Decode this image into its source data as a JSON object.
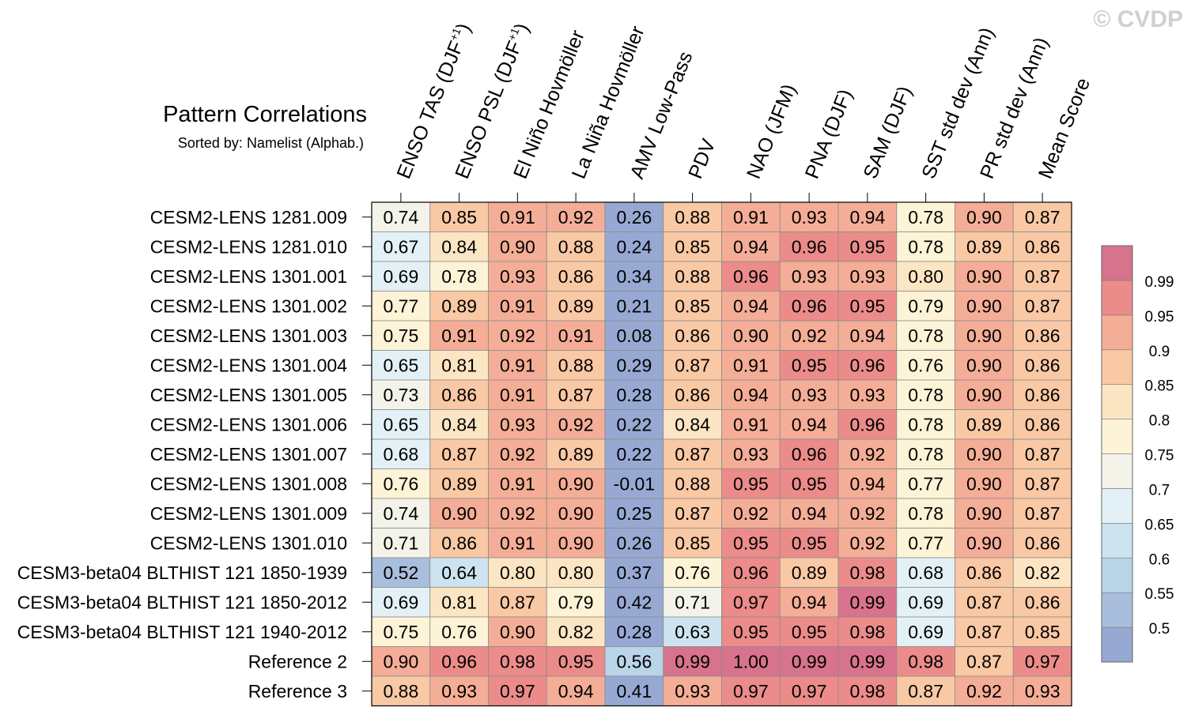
{
  "watermark": "© CVDP",
  "chart_data": {
    "type": "heatmap",
    "title": "Pattern Correlations",
    "subtitle": "Sorted by: Namelist (Alphab.)",
    "columns": [
      {
        "main": "ENSO TAS (DJF",
        "sup": "+1",
        "tail": ")"
      },
      {
        "main": "ENSO PSL (DJF",
        "sup": "+1",
        "tail": ")"
      },
      {
        "main": "El Niño Hovmöller",
        "sup": "",
        "tail": ""
      },
      {
        "main": "La Niña Hovmöller",
        "sup": "",
        "tail": ""
      },
      {
        "main": "AMV Low-Pass",
        "sup": "",
        "tail": ""
      },
      {
        "main": "PDV",
        "sup": "",
        "tail": ""
      },
      {
        "main": "NAO (JFM)",
        "sup": "",
        "tail": ""
      },
      {
        "main": "PNA (DJF)",
        "sup": "",
        "tail": ""
      },
      {
        "main": "SAM (DJF)",
        "sup": "",
        "tail": ""
      },
      {
        "main": "SST std dev (Ann)",
        "sup": "",
        "tail": ""
      },
      {
        "main": "PR std dev (Ann)",
        "sup": "",
        "tail": ""
      },
      {
        "main": "Mean Score",
        "sup": "",
        "tail": ""
      }
    ],
    "rows": [
      "CESM2-LENS 1281.009",
      "CESM2-LENS 1281.010",
      "CESM2-LENS 1301.001",
      "CESM2-LENS 1301.002",
      "CESM2-LENS 1301.003",
      "CESM2-LENS 1301.004",
      "CESM2-LENS 1301.005",
      "CESM2-LENS 1301.006",
      "CESM2-LENS 1301.007",
      "CESM2-LENS 1301.008",
      "CESM2-LENS 1301.009",
      "CESM2-LENS 1301.010",
      "CESM3-beta04 BLTHIST 121 1850-1939",
      "CESM3-beta04 BLTHIST 121 1850-2012",
      "CESM3-beta04 BLTHIST 121 1940-2012",
      "Reference 2",
      "Reference 3"
    ],
    "values": [
      [
        "0.74",
        "0.85",
        "0.91",
        "0.92",
        "0.26",
        "0.88",
        "0.91",
        "0.93",
        "0.94",
        "0.78",
        "0.90",
        "0.87"
      ],
      [
        "0.67",
        "0.84",
        "0.90",
        "0.88",
        "0.24",
        "0.85",
        "0.94",
        "0.96",
        "0.95",
        "0.78",
        "0.89",
        "0.86"
      ],
      [
        "0.69",
        "0.78",
        "0.93",
        "0.86",
        "0.34",
        "0.88",
        "0.96",
        "0.93",
        "0.93",
        "0.80",
        "0.90",
        "0.87"
      ],
      [
        "0.77",
        "0.89",
        "0.91",
        "0.89",
        "0.21",
        "0.85",
        "0.94",
        "0.96",
        "0.95",
        "0.79",
        "0.90",
        "0.87"
      ],
      [
        "0.75",
        "0.91",
        "0.92",
        "0.91",
        "0.08",
        "0.86",
        "0.90",
        "0.92",
        "0.94",
        "0.78",
        "0.90",
        "0.86"
      ],
      [
        "0.65",
        "0.81",
        "0.91",
        "0.88",
        "0.29",
        "0.87",
        "0.91",
        "0.95",
        "0.96",
        "0.76",
        "0.90",
        "0.86"
      ],
      [
        "0.73",
        "0.86",
        "0.91",
        "0.87",
        "0.28",
        "0.86",
        "0.94",
        "0.93",
        "0.93",
        "0.78",
        "0.90",
        "0.86"
      ],
      [
        "0.65",
        "0.84",
        "0.93",
        "0.92",
        "0.22",
        "0.84",
        "0.91",
        "0.94",
        "0.96",
        "0.78",
        "0.89",
        "0.86"
      ],
      [
        "0.68",
        "0.87",
        "0.92",
        "0.89",
        "0.22",
        "0.87",
        "0.93",
        "0.96",
        "0.92",
        "0.78",
        "0.90",
        "0.87"
      ],
      [
        "0.76",
        "0.89",
        "0.91",
        "0.90",
        "-0.01",
        "0.88",
        "0.95",
        "0.95",
        "0.94",
        "0.77",
        "0.90",
        "0.87"
      ],
      [
        "0.74",
        "0.90",
        "0.92",
        "0.90",
        "0.25",
        "0.87",
        "0.92",
        "0.94",
        "0.92",
        "0.78",
        "0.90",
        "0.87"
      ],
      [
        "0.71",
        "0.86",
        "0.91",
        "0.90",
        "0.26",
        "0.85",
        "0.95",
        "0.95",
        "0.92",
        "0.77",
        "0.90",
        "0.86"
      ],
      [
        "0.52",
        "0.64",
        "0.80",
        "0.80",
        "0.37",
        "0.76",
        "0.96",
        "0.89",
        "0.98",
        "0.68",
        "0.86",
        "0.82"
      ],
      [
        "0.69",
        "0.81",
        "0.87",
        "0.79",
        "0.42",
        "0.71",
        "0.97",
        "0.94",
        "0.99",
        "0.69",
        "0.87",
        "0.86"
      ],
      [
        "0.75",
        "0.76",
        "0.90",
        "0.82",
        "0.28",
        "0.63",
        "0.95",
        "0.95",
        "0.98",
        "0.69",
        "0.87",
        "0.85"
      ],
      [
        "0.90",
        "0.96",
        "0.98",
        "0.95",
        "0.56",
        "0.99",
        "1.00",
        "0.99",
        "0.99",
        "0.98",
        "0.87",
        "0.97"
      ],
      [
        "0.88",
        "0.93",
        "0.97",
        "0.94",
        "0.41",
        "0.93",
        "0.97",
        "0.97",
        "0.98",
        "0.87",
        "0.92",
        "0.93"
      ]
    ],
    "colorbar": {
      "levels": [
        0.5,
        0.55,
        0.6,
        0.65,
        0.7,
        0.75,
        0.8,
        0.85,
        0.9,
        0.95,
        0.99
      ],
      "labels": [
        "0.5",
        "0.55",
        "0.6",
        "0.65",
        "0.7",
        "0.75",
        "0.8",
        "0.85",
        "0.9",
        "0.95",
        "0.99"
      ],
      "colors": [
        "#97a9d3",
        "#a9bedd",
        "#bad4e8",
        "#cde3ef",
        "#e3f1f6",
        "#f3f3ea",
        "#fdf3d6",
        "#fce5c3",
        "#f9c8a4",
        "#f4ad96",
        "#eb8c8a",
        "#d7738c"
      ]
    }
  }
}
